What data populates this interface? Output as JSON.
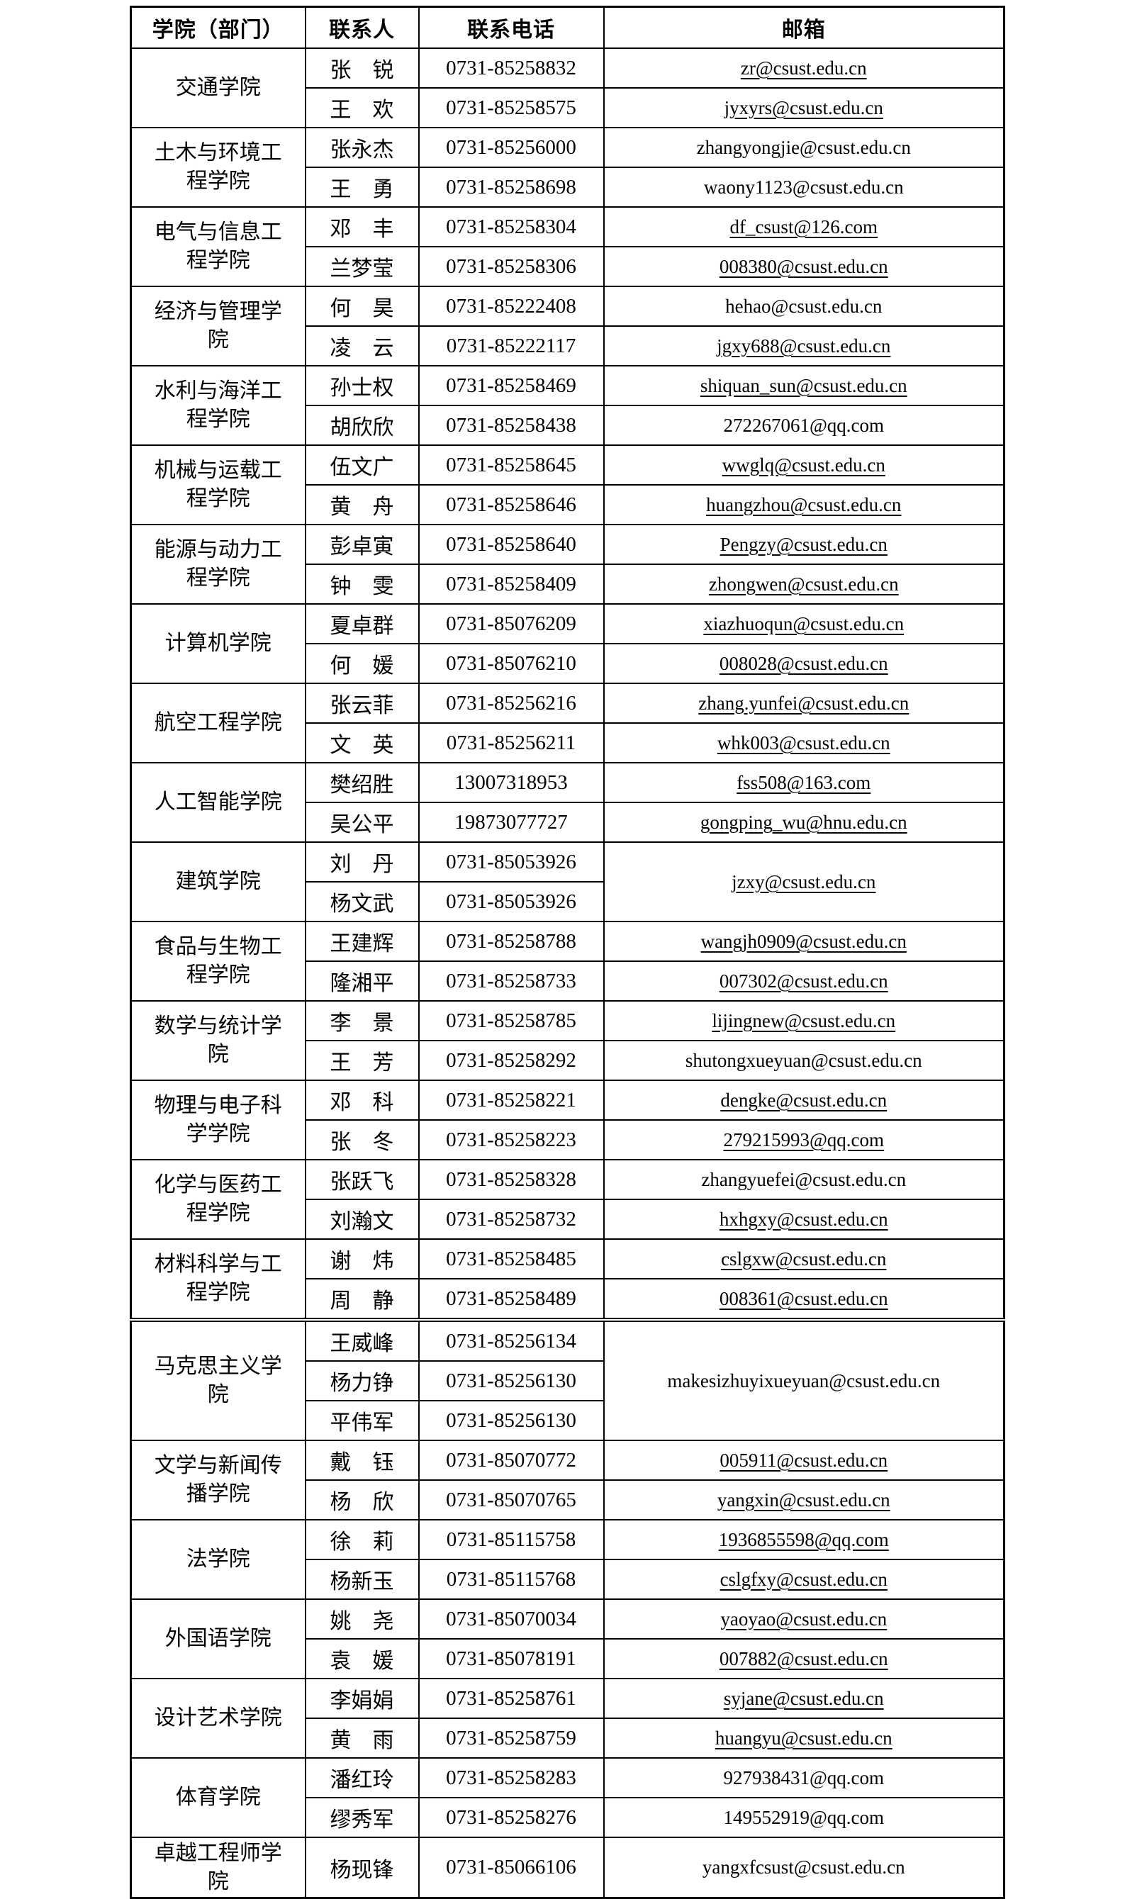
{
  "table": {
    "headers": [
      "学院（部门）",
      "联系人",
      "联系电话",
      "邮箱"
    ],
    "groups": [
      {
        "college": "交通学院",
        "contacts": [
          {
            "name": "张　锐",
            "phone": "0731-85258832",
            "email": "zr@csust.edu.cn",
            "email_underlined": true
          },
          {
            "name": "王　欢",
            "phone": "0731-85258575",
            "email": "jyxyrs@csust.edu.cn",
            "email_underlined": true
          }
        ]
      },
      {
        "college": "土木与环境工\n程学院",
        "contacts": [
          {
            "name": "张永杰",
            "phone": "0731-85256000",
            "email": "zhangyongjie@csust.edu.cn",
            "email_underlined": false
          },
          {
            "name": "王　勇",
            "phone": "0731-85258698",
            "email": "waony1123@csust.edu.cn",
            "email_underlined": false
          }
        ]
      },
      {
        "college": "电气与信息工\n程学院",
        "contacts": [
          {
            "name": "邓　丰",
            "phone": "0731-85258304",
            "email": "df_csust@126.com",
            "email_underlined": true
          },
          {
            "name": "兰梦莹",
            "phone": "0731-85258306",
            "email": "008380@csust.edu.cn",
            "email_underlined": true
          }
        ]
      },
      {
        "college": "经济与管理学\n院",
        "contacts": [
          {
            "name": "何　昊",
            "phone": "0731-85222408",
            "email": "hehao@csust.edu.cn",
            "email_underlined": false
          },
          {
            "name": "凌　云",
            "phone": "0731-85222117",
            "email": "jgxy688@csust.edu.cn",
            "email_underlined": true
          }
        ]
      },
      {
        "college": "水利与海洋工\n程学院",
        "contacts": [
          {
            "name": "孙士权",
            "phone": "0731-85258469",
            "email": "shiquan_sun@csust.edu.cn",
            "email_underlined": true
          },
          {
            "name": "胡欣欣",
            "phone": "0731-85258438",
            "email": "272267061@qq.com",
            "email_underlined": false
          }
        ]
      },
      {
        "college": "机械与运载工\n程学院",
        "contacts": [
          {
            "name": "伍文广",
            "phone": "0731-85258645",
            "email": "wwglq@csust.edu.cn",
            "email_underlined": true
          },
          {
            "name": "黄　舟",
            "phone": "0731-85258646",
            "email": "huangzhou@csust.edu.cn",
            "email_underlined": true
          }
        ]
      },
      {
        "college": "能源与动力工\n程学院",
        "contacts": [
          {
            "name": "彭卓寅",
            "phone": "0731-85258640",
            "email": "Pengzy@csust.edu.cn",
            "email_underlined": true
          },
          {
            "name": "钟　雯",
            "phone": "0731-85258409",
            "email": "zhongwen@csust.edu.cn",
            "email_underlined": true
          }
        ]
      },
      {
        "college": "计算机学院",
        "contacts": [
          {
            "name": "夏卓群",
            "phone": "0731-85076209",
            "email": "xiazhuoqun@csust.edu.cn",
            "email_underlined": true
          },
          {
            "name": "何　媛",
            "phone": "0731-85076210",
            "email": "008028@csust.edu.cn",
            "email_underlined": true
          }
        ]
      },
      {
        "college": "航空工程学院",
        "contacts": [
          {
            "name": "张云菲",
            "phone": "0731-85256216",
            "email": "zhang.yunfei@csust.edu.cn",
            "email_underlined": true
          },
          {
            "name": "文　英",
            "phone": "0731-85256211",
            "email": "whk003@csust.edu.cn",
            "email_underlined": true
          }
        ]
      },
      {
        "college": "人工智能学院",
        "contacts": [
          {
            "name": "樊绍胜",
            "phone": "13007318953",
            "email": "fss508@163.com",
            "email_underlined": true
          },
          {
            "name": "吴公平",
            "phone": "19873077727",
            "email": "gongping_wu@hnu.edu.cn",
            "email_underlined": true
          }
        ]
      },
      {
        "college": "建筑学院",
        "shared_email": {
          "email": "jzxy@csust.edu.cn",
          "email_underlined": true
        },
        "contacts": [
          {
            "name": "刘　丹",
            "phone": "0731-85053926"
          },
          {
            "name": "杨文武",
            "phone": "0731-85053926"
          }
        ]
      },
      {
        "college": "食品与生物工\n程学院",
        "contacts": [
          {
            "name": "王建辉",
            "phone": "0731-85258788",
            "email": "wangjh0909@csust.edu.cn",
            "email_underlined": true
          },
          {
            "name": "隆湘平",
            "phone": "0731-85258733",
            "email": "007302@csust.edu.cn",
            "email_underlined": true
          }
        ]
      },
      {
        "college": "数学与统计学\n院",
        "contacts": [
          {
            "name": "李　景",
            "phone": "0731-85258785",
            "email": "lijingnew@csust.edu.cn",
            "email_underlined": true
          },
          {
            "name": "王　芳",
            "phone": "0731-85258292",
            "email": "shutongxueyuan@csust.edu.cn",
            "email_underlined": false
          }
        ]
      },
      {
        "college": "物理与电子科\n学学院",
        "contacts": [
          {
            "name": "邓　科",
            "phone": "0731-85258221",
            "email": "dengke@csust.edu.cn",
            "email_underlined": true
          },
          {
            "name": "张　冬",
            "phone": "0731-85258223",
            "email": "279215993@qq.com",
            "email_underlined": true
          }
        ]
      },
      {
        "college": "化学与医药工\n程学院",
        "contacts": [
          {
            "name": "张跃飞",
            "phone": "0731-85258328",
            "email": "zhangyuefei@csust.edu.cn",
            "email_underlined": false
          },
          {
            "name": "刘瀚文",
            "phone": "0731-85258732",
            "email": "hxhgxy@csust.edu.cn",
            "email_underlined": true
          }
        ]
      },
      {
        "college": "材料科学与工\n程学院",
        "separator_below": "double",
        "contacts": [
          {
            "name": "谢　炜",
            "phone": "0731-85258485",
            "email": "cslgxw@csust.edu.cn",
            "email_underlined": true
          },
          {
            "name": "周　静",
            "phone": "0731-85258489",
            "email": "008361@csust.edu.cn",
            "email_underlined": true
          }
        ]
      },
      {
        "college": "马克思主义学\n院",
        "shared_email": {
          "email": "makesizhuyixueyuan@csust.edu.cn",
          "email_underlined": false
        },
        "contacts": [
          {
            "name": "王威峰",
            "phone": "0731-85256134"
          },
          {
            "name": "杨力铮",
            "phone": "0731-85256130"
          },
          {
            "name": "平伟军",
            "phone": "0731-85256130"
          }
        ]
      },
      {
        "college": "文学与新闻传\n播学院",
        "contacts": [
          {
            "name": "戴　钰",
            "phone": "0731-85070772",
            "email": "005911@csust.edu.cn",
            "email_underlined": true
          },
          {
            "name": "杨　欣",
            "phone": "0731-85070765",
            "email": "yangxin@csust.edu.cn",
            "email_underlined": true
          }
        ]
      },
      {
        "college": "法学院",
        "contacts": [
          {
            "name": "徐　莉",
            "phone": "0731-85115758",
            "email": "1936855598@qq.com",
            "email_underlined": true
          },
          {
            "name": "杨新玉",
            "phone": "0731-85115768",
            "email": "cslgfxy@csust.edu.cn",
            "email_underlined": true
          }
        ]
      },
      {
        "college": "外国语学院",
        "contacts": [
          {
            "name": "姚　尧",
            "phone": "0731-85070034",
            "email": "yaoyao@csust.edu.cn",
            "email_underlined": true
          },
          {
            "name": "袁　媛",
            "phone": "0731-85078191",
            "email": "007882@csust.edu.cn",
            "email_underlined": true
          }
        ]
      },
      {
        "college": "设计艺术学院",
        "contacts": [
          {
            "name": "李娟娟",
            "phone": "0731-85258761",
            "email": "syjane@csust.edu.cn",
            "email_underlined": true
          },
          {
            "name": "黄　雨",
            "phone": "0731-85258759",
            "email": "huangyu@csust.edu.cn",
            "email_underlined": true
          }
        ]
      },
      {
        "college": "体育学院",
        "contacts": [
          {
            "name": "潘红玲",
            "phone": "0731-85258283",
            "email": "927938431@qq.com",
            "email_underlined": false
          },
          {
            "name": "缪秀军",
            "phone": "0731-85258276",
            "email": "149552919@qq.com",
            "email_underlined": false
          }
        ]
      },
      {
        "college": "卓越工程师学\n院",
        "contacts": [
          {
            "name": "杨现锋",
            "phone": "0731-85066106",
            "email": "yangxfcsust@csust.edu.cn",
            "email_underlined": false
          }
        ]
      }
    ]
  }
}
